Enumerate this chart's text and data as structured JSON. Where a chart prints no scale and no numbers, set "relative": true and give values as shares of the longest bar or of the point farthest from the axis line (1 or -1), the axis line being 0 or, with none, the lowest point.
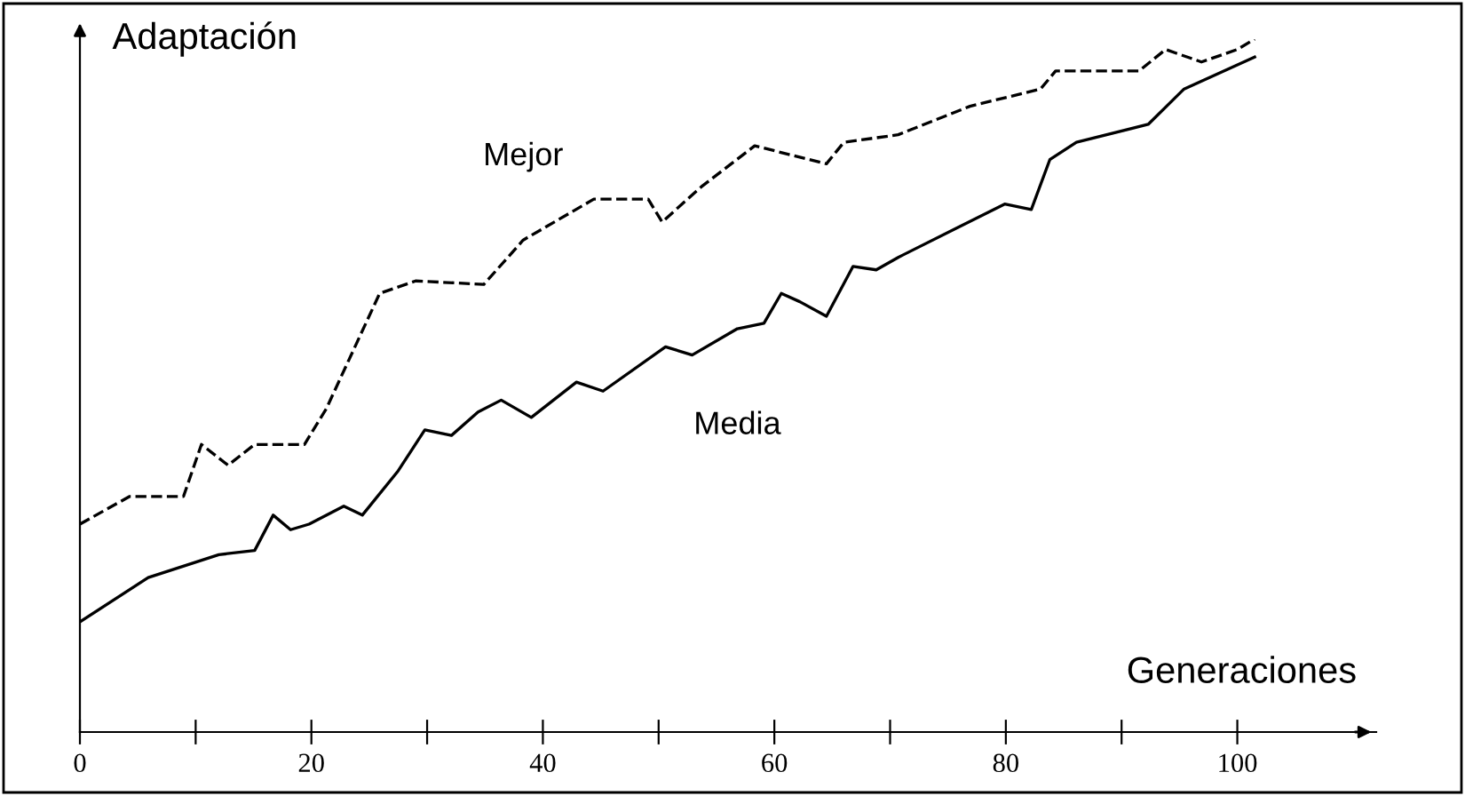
{
  "chart_data": {
    "type": "line",
    "relative": true,
    "xlabel": "Generaciones",
    "ylabel": "Adaptación",
    "xlim": [
      0,
      112
    ],
    "xticks": [
      0,
      {
        "value": 10,
        "label": null
      },
      20,
      {
        "value": 30,
        "label": null
      },
      40,
      {
        "value": 50,
        "label": null
      },
      60,
      {
        "value": 70,
        "label": null
      },
      80,
      {
        "value": 90,
        "label": null
      },
      100
    ],
    "grid": false,
    "legend": false,
    "marker": "none",
    "series": [
      {
        "name": "Mejor",
        "color": "#000000",
        "line_style": "dashed",
        "x": [
          0,
          4.3,
          8.95,
          10.5,
          12.8,
          15.1,
          19.4,
          21.3,
          25.9,
          29,
          34.9,
          38.3,
          44.4,
          49.1,
          50.3,
          53.7,
          58.3,
          64.5,
          66,
          70.7,
          76.9,
          83,
          84.3,
          91.5,
          93.8,
          96.9,
          100,
          101.5
        ],
        "values": [
          0.3,
          0.34,
          0.34,
          0.415,
          0.385,
          0.415,
          0.415,
          0.467,
          0.633,
          0.651,
          0.646,
          0.71,
          0.769,
          0.769,
          0.736,
          0.787,
          0.846,
          0.82,
          0.851,
          0.862,
          0.903,
          0.928,
          0.954,
          0.954,
          0.985,
          0.967,
          0.985,
          1.0
        ]
      },
      {
        "name": "Media",
        "color": "#000000",
        "line_style": "solid",
        "x": [
          0,
          5.9,
          12,
          15.1,
          16.7,
          18.2,
          19.8,
          22.8,
          24.4,
          27.5,
          29.8,
          32.1,
          34.4,
          36.4,
          39,
          42.9,
          45.2,
          50.6,
          52.9,
          56.8,
          59.1,
          60.6,
          62.2,
          64.5,
          66.8,
          68.8,
          70.7,
          79.9,
          82.2,
          83.8,
          86.1,
          92.3,
          95.4,
          101.5
        ],
        "values": [
          0.159,
          0.223,
          0.256,
          0.262,
          0.313,
          0.292,
          0.3,
          0.326,
          0.313,
          0.377,
          0.436,
          0.428,
          0.462,
          0.479,
          0.454,
          0.505,
          0.492,
          0.556,
          0.544,
          0.582,
          0.59,
          0.633,
          0.621,
          0.6,
          0.672,
          0.667,
          0.685,
          0.762,
          0.754,
          0.826,
          0.851,
          0.877,
          0.928,
          0.974
        ]
      }
    ]
  }
}
